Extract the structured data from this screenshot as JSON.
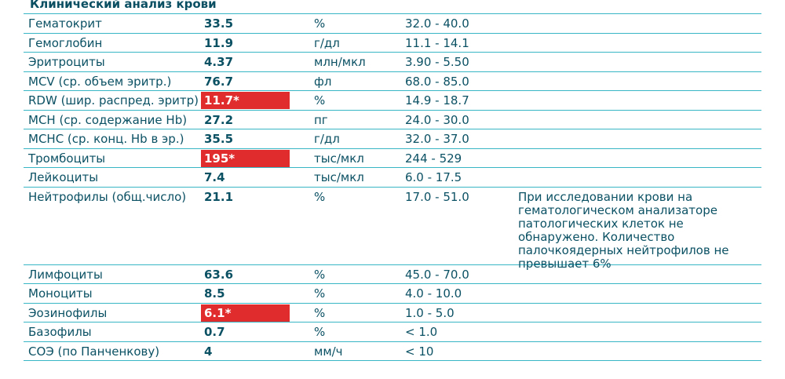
{
  "title": "Клинический анализ крови",
  "rows": [
    {
      "name": "Гематокрит",
      "value": "33.5",
      "unit": "%",
      "ref": "32.0 - 40.0",
      "flag": false
    },
    {
      "name": "Гемоглобин",
      "value": "11.9",
      "unit": "г/дл",
      "ref": "11.1 - 14.1",
      "flag": false
    },
    {
      "name": "Эритроциты",
      "value": "4.37",
      "unit": "млн/мкл",
      "ref": "3.90 - 5.50",
      "flag": false
    },
    {
      "name": "MCV (ср. объем эритр.)",
      "value": "76.7",
      "unit": "фл",
      "ref": "68.0 - 85.0",
      "flag": false
    },
    {
      "name": "RDW (шир. распред. эритр)",
      "value": "11.7*",
      "unit": "%",
      "ref": "14.9 - 18.7",
      "flag": true
    },
    {
      "name": "MCH (ср. содержание Hb)",
      "value": "27.2",
      "unit": "пг",
      "ref": "24.0 - 30.0",
      "flag": false
    },
    {
      "name": "MCHC (ср. конц. Hb в эр.)",
      "value": "35.5",
      "unit": "г/дл",
      "ref": "32.0 - 37.0",
      "flag": false
    },
    {
      "name": "Тромбоциты",
      "value": "195*",
      "unit": "тыс/мкл",
      "ref": "244 - 529",
      "flag": true
    },
    {
      "name": "Лейкоциты",
      "value": "7.4",
      "unit": "тыс/мкл",
      "ref": "6.0 - 17.5",
      "flag": false
    },
    {
      "name": "Нейтрофилы (общ.число)",
      "value": "21.1",
      "unit": "%",
      "ref": "17.0 - 51.0",
      "flag": false,
      "note_lines": [
        "При исследовании крови на",
        "гематологическом анализаторе",
        "патологических клеток не",
        "обнаружено. Количество",
        "палочкоядерных нейтрофилов не",
        "превышает 6%"
      ]
    },
    {
      "name": "Лимфоциты",
      "value": "63.6",
      "unit": "%",
      "ref": "45.0 - 70.0",
      "flag": false
    },
    {
      "name": "Моноциты",
      "value": "8.5",
      "unit": "%",
      "ref": "4.0 - 10.0",
      "flag": false
    },
    {
      "name": "Эозинофилы",
      "value": "6.1*",
      "unit": "%",
      "ref": "1.0 - 5.0",
      "flag": true
    },
    {
      "name": "Базофилы",
      "value": "0.7",
      "unit": "%",
      "ref": "< 1.0",
      "flag": false
    },
    {
      "name": "СОЭ (по Панченкову)",
      "value": "4",
      "unit": "мм/ч",
      "ref": "< 10",
      "flag": false
    }
  ],
  "colors": {
    "text": "#0b5164",
    "rule": "#39b6c6",
    "flag_bg": "#e02c2c",
    "flag_text": "#ffffff"
  }
}
